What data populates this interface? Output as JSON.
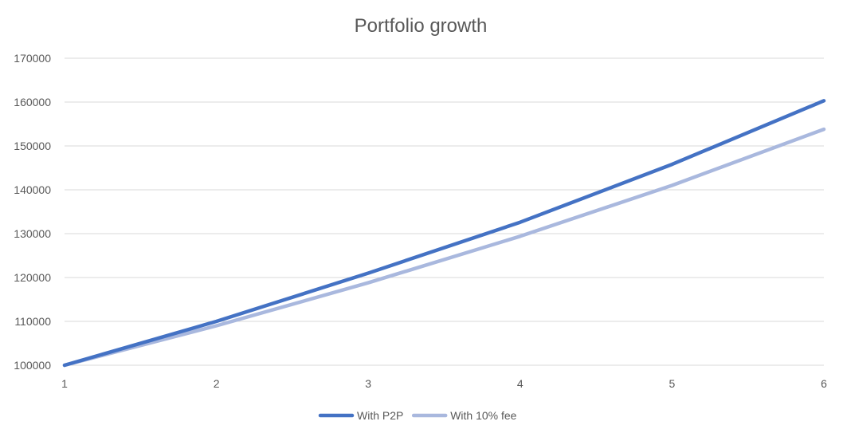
{
  "chart_data": {
    "type": "line",
    "title": "Portfolio growth",
    "x": [
      1,
      2,
      3,
      4,
      5,
      6
    ],
    "xlim": [
      1,
      6
    ],
    "ylim": [
      100000,
      170000
    ],
    "yticks": [
      100000,
      110000,
      120000,
      130000,
      140000,
      150000,
      160000,
      170000
    ],
    "xlabel": "",
    "ylabel": "",
    "grid": true,
    "legend_position": "bottom",
    "series": [
      {
        "name": "With P2P",
        "color": "#4472C4",
        "values": [
          100000,
          110000,
          121000,
          132600,
          145800,
          160300
        ]
      },
      {
        "name": "With 10% fee",
        "color": "#A9B8DE",
        "values": [
          100000,
          109000,
          118800,
          129400,
          141000,
          153800
        ]
      }
    ]
  }
}
